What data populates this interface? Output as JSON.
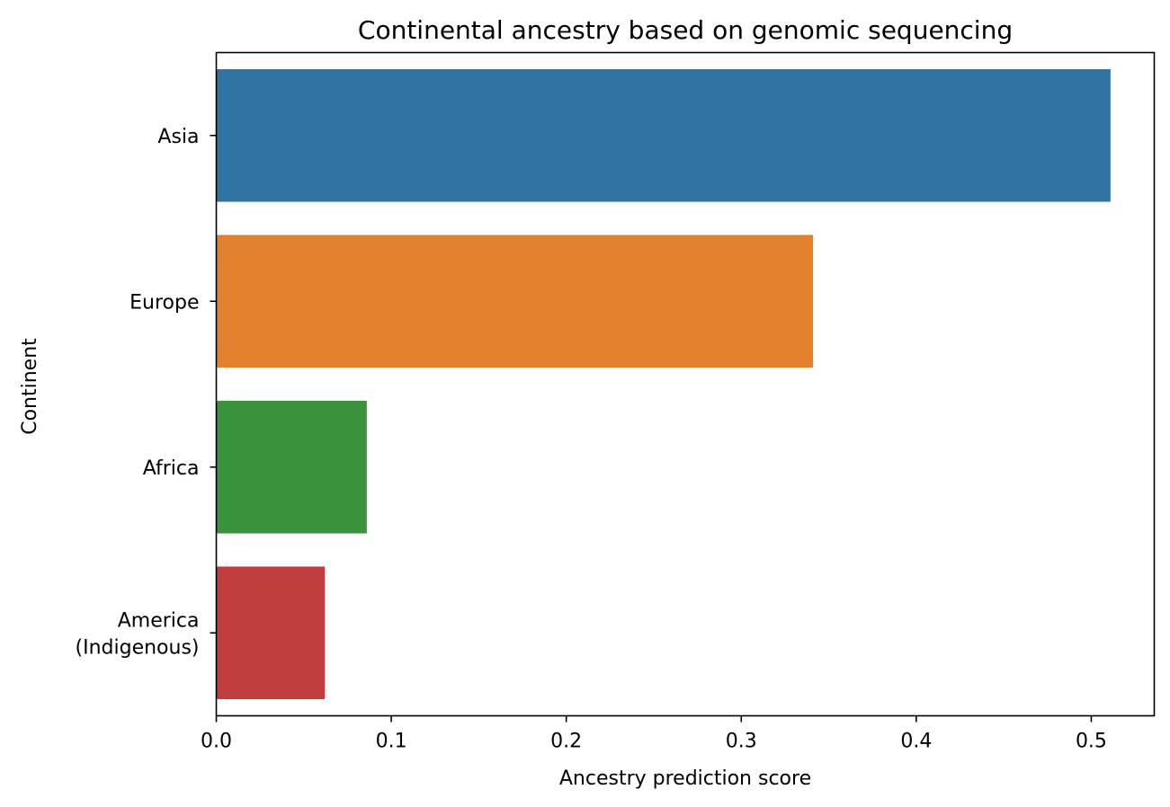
{
  "chart_data": {
    "type": "bar",
    "orientation": "horizontal",
    "title": "Continental ancestry based on genomic sequencing",
    "xlabel": "Ancestry prediction score",
    "ylabel": "Continent",
    "categories": [
      "Asia",
      "Europe",
      "Africa",
      "America\n(Indigenous)"
    ],
    "values": [
      0.511,
      0.341,
      0.086,
      0.062
    ],
    "colors": [
      "#3274a1",
      "#e1812c",
      "#3a923a",
      "#c03d3e"
    ],
    "xlim": [
      0,
      0.536
    ],
    "xticks": [
      0.0,
      0.1,
      0.2,
      0.3,
      0.4,
      0.5
    ],
    "xtick_labels": [
      "0.0",
      "0.1",
      "0.2",
      "0.3",
      "0.4",
      "0.5"
    ],
    "grid": false,
    "legend": false
  }
}
